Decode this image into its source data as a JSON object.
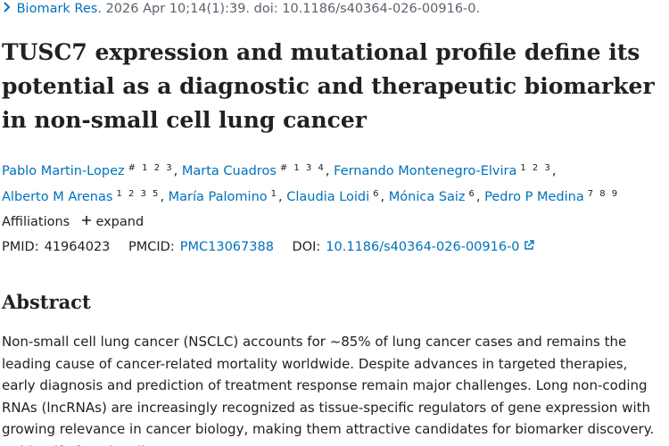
{
  "citation": {
    "journal": "Biomark Res.",
    "details": "2026 Apr 10;14(1):39. doi: 10.1186/s40364-026-00916-0."
  },
  "title": "TUSC7 expression and mutational profile define its potential as a diagnostic and therapeutic biomarker in non-small cell lung cancer",
  "authors": {
    "separator": ",",
    "list": [
      {
        "name": "Pablo Martin-Lopez",
        "sup": "# 1 2 3"
      },
      {
        "name": "Marta Cuadros",
        "sup": "# 1 3 4"
      },
      {
        "name": "Fernando Montenegro-Elvira",
        "sup": "1 2 3"
      },
      {
        "name": "Alberto M Arenas",
        "sup": "1 2 3 5"
      },
      {
        "name": "María Palomino",
        "sup": "1"
      },
      {
        "name": "Claudia Loidi",
        "sup": "6"
      },
      {
        "name": "Mónica Saiz",
        "sup": "6"
      },
      {
        "name": "Pedro P Medina",
        "sup": "7 8 9"
      }
    ]
  },
  "affiliations": {
    "label": "Affiliations",
    "toggle": "expand"
  },
  "ids": {
    "pmid_label": "PMID:",
    "pmid": "41964023",
    "pmcid_label": "PMCID:",
    "pmcid": "PMC13067388",
    "doi_label": "DOI:",
    "doi": "10.1186/s40364-026-00916-0"
  },
  "abstract": {
    "heading": "Abstract",
    "text": "Non-small cell lung cancer (NSCLC) accounts for ~85% of lung cancer cases and remains the leading cause of cancer-related mortality worldwide. Despite advances in targeted therapies, early diagnosis and prediction of treatment response remain major challenges. Long non-coding RNAs (lncRNAs) are increasingly recognized as tissue-specific regulators of gene expression with growing relevance in cancer biology, making them attractive candidates for biomarker discovery. To identify functionally"
  }
}
